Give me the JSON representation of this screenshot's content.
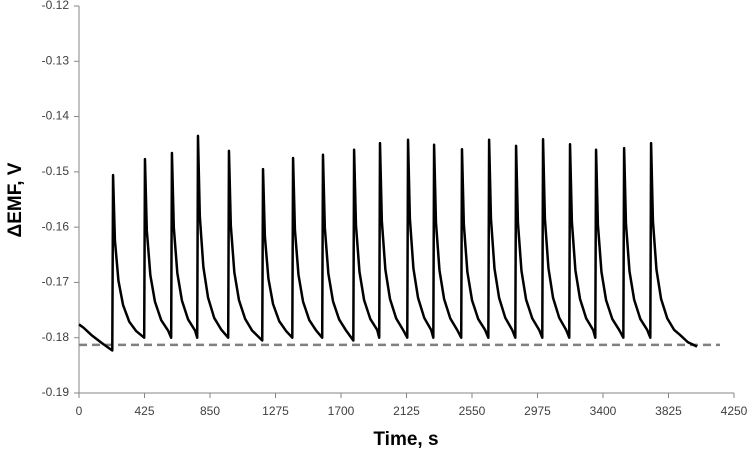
{
  "chart_data": {
    "type": "line",
    "xlabel": "Time, s",
    "ylabel": "ΔEMF, V",
    "xlim": [
      0,
      4250
    ],
    "xticks": [
      0,
      425,
      850,
      1275,
      1700,
      2125,
      2550,
      2975,
      3400,
      3825,
      4250
    ],
    "ylim": [
      -0.19,
      -0.12
    ],
    "yticks": [
      -0.19,
      -0.18,
      -0.17,
      -0.16,
      -0.15,
      -0.14,
      -0.13,
      -0.12
    ],
    "grid": false,
    "reference_line": {
      "value": -0.1813,
      "color": "#808080",
      "dashed": true
    },
    "series": [
      {
        "color": "#000000",
        "x": [
          0,
          30,
          80,
          150,
          200,
          216,
          221,
          233,
          256,
          286,
          326,
          371,
          423,
          428,
          440,
          463,
          493,
          533,
          578,
          598,
          603,
          615,
          638,
          668,
          708,
          753,
          767,
          772,
          784,
          807,
          837,
          877,
          922,
          968,
          973,
          985,
          1008,
          1038,
          1078,
          1123,
          1189,
          1194,
          1206,
          1229,
          1259,
          1299,
          1344,
          1384,
          1389,
          1401,
          1424,
          1454,
          1494,
          1539,
          1578,
          1583,
          1595,
          1618,
          1648,
          1688,
          1733,
          1780,
          1785,
          1797,
          1820,
          1850,
          1890,
          1935,
          1948,
          1953,
          1965,
          1988,
          2018,
          2058,
          2103,
          2130,
          2135,
          2147,
          2170,
          2200,
          2240,
          2285,
          2299,
          2304,
          2316,
          2339,
          2369,
          2409,
          2454,
          2480,
          2485,
          2497,
          2520,
          2550,
          2590,
          2635,
          2656,
          2661,
          2673,
          2696,
          2726,
          2766,
          2811,
          2831,
          2836,
          2848,
          2871,
          2901,
          2941,
          2986,
          3006,
          3011,
          3023,
          3046,
          3076,
          3116,
          3161,
          3181,
          3186,
          3198,
          3221,
          3251,
          3291,
          3336,
          3350,
          3355,
          3367,
          3390,
          3420,
          3460,
          3505,
          3532,
          3537,
          3549,
          3572,
          3602,
          3642,
          3687,
          3707,
          3712,
          3724,
          3747,
          3777,
          3817,
          3862,
          3900,
          3950,
          4010
        ],
        "values": [
          -0.1776,
          -0.1782,
          -0.1795,
          -0.181,
          -0.182,
          -0.1823,
          -0.1506,
          -0.1624,
          -0.1697,
          -0.1741,
          -0.1771,
          -0.1788,
          -0.18,
          -0.1477,
          -0.1606,
          -0.1687,
          -0.1735,
          -0.1768,
          -0.1787,
          -0.18,
          -0.1466,
          -0.16,
          -0.1683,
          -0.1733,
          -0.1767,
          -0.1787,
          -0.18,
          -0.1435,
          -0.1581,
          -0.1672,
          -0.1727,
          -0.1764,
          -0.1785,
          -0.18,
          -0.1462,
          -0.1597,
          -0.1682,
          -0.1732,
          -0.1766,
          -0.1787,
          -0.1805,
          -0.1495,
          -0.1617,
          -0.1693,
          -0.1739,
          -0.177,
          -0.1788,
          -0.18,
          -0.1475,
          -0.1605,
          -0.1686,
          -0.1735,
          -0.1768,
          -0.1787,
          -0.18,
          -0.1469,
          -0.1601,
          -0.1684,
          -0.1734,
          -0.1767,
          -0.1787,
          -0.1805,
          -0.146,
          -0.1596,
          -0.1681,
          -0.1732,
          -0.1766,
          -0.1786,
          -0.18,
          -0.1448,
          -0.1589,
          -0.1677,
          -0.173,
          -0.1765,
          -0.1786,
          -0.18,
          -0.1442,
          -0.1585,
          -0.1675,
          -0.1728,
          -0.1764,
          -0.1786,
          -0.18,
          -0.1451,
          -0.1591,
          -0.1678,
          -0.173,
          -0.1765,
          -0.1786,
          -0.18,
          -0.1459,
          -0.1595,
          -0.1681,
          -0.1732,
          -0.1766,
          -0.1786,
          -0.18,
          -0.1442,
          -0.1585,
          -0.1675,
          -0.1728,
          -0.1764,
          -0.1786,
          -0.18,
          -0.1453,
          -0.1592,
          -0.1679,
          -0.1731,
          -0.1765,
          -0.1786,
          -0.18,
          -0.1441,
          -0.1585,
          -0.1674,
          -0.1728,
          -0.1764,
          -0.1786,
          -0.18,
          -0.145,
          -0.159,
          -0.1678,
          -0.173,
          -0.1765,
          -0.1786,
          -0.18,
          -0.146,
          -0.1596,
          -0.1681,
          -0.1732,
          -0.1766,
          -0.1786,
          -0.18,
          -0.1457,
          -0.1594,
          -0.168,
          -0.1731,
          -0.1766,
          -0.1786,
          -0.18,
          -0.1448,
          -0.1589,
          -0.1677,
          -0.173,
          -0.1765,
          -0.1786,
          -0.1795,
          -0.1808,
          -0.1816
        ]
      }
    ]
  }
}
